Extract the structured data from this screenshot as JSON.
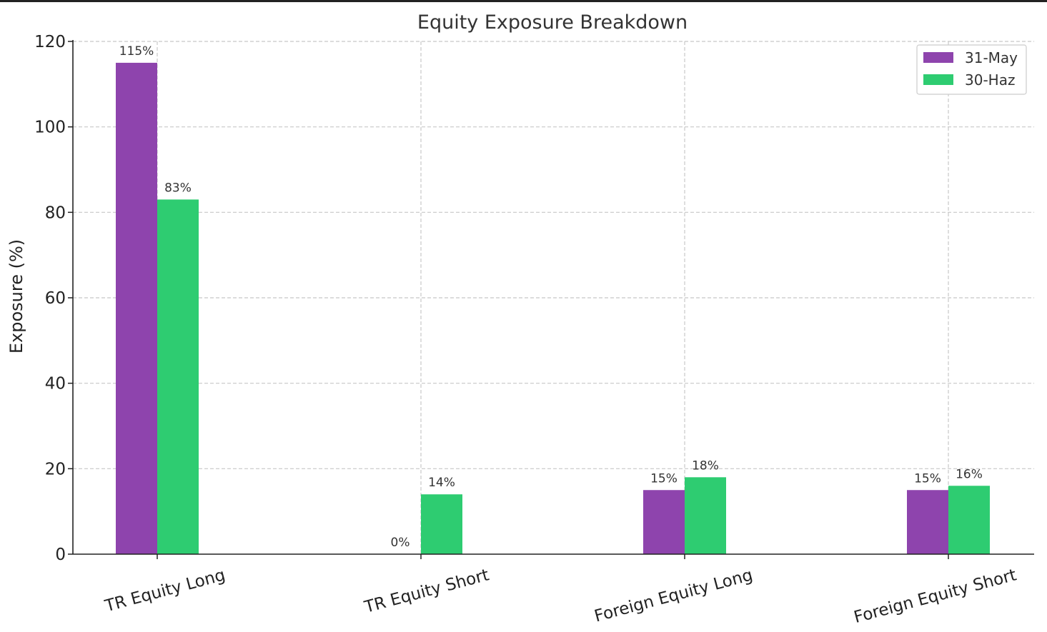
{
  "chart_data": {
    "type": "bar",
    "title": "Equity Exposure Breakdown",
    "xlabel": "",
    "ylabel": "Exposure (%)",
    "ylim": [
      0,
      120
    ],
    "yticks": [
      "0",
      "20",
      "40",
      "60",
      "80",
      "100",
      "120"
    ],
    "grid": true,
    "legend_position": "top-right",
    "categories": [
      "TR Equity Long",
      "TR Equity Short",
      "Foreign Equity Long",
      "Foreign Equity Short"
    ],
    "series": [
      {
        "name": "31-May",
        "color": "#8e44ad",
        "values": [
          115,
          0,
          15,
          15
        ],
        "labels": [
          "115%",
          "0%",
          "15%",
          "15%"
        ]
      },
      {
        "name": "30-Haz",
        "color": "#2ecc71",
        "values": [
          83,
          14,
          18,
          16
        ],
        "labels": [
          "83%",
          "14%",
          "18%",
          "16%"
        ]
      }
    ]
  }
}
